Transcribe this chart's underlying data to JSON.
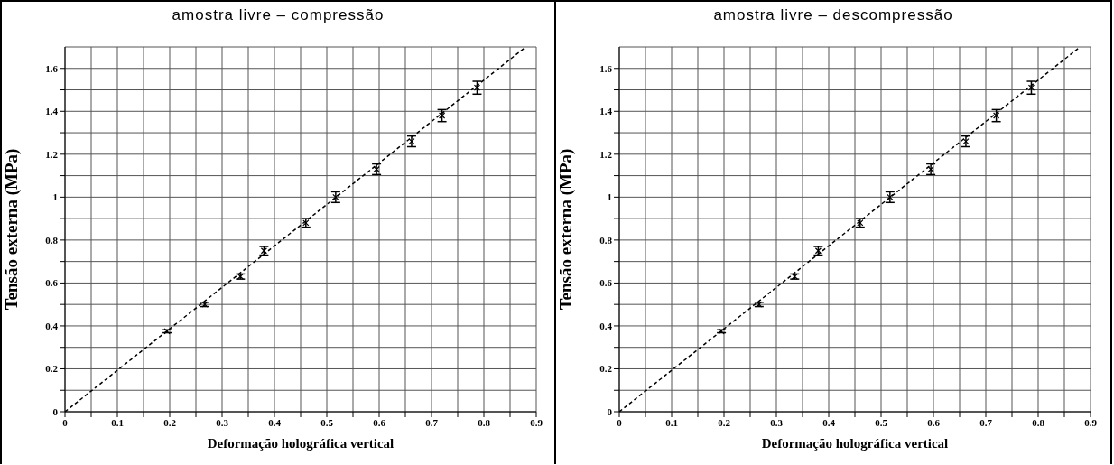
{
  "chart_data": [
    {
      "type": "scatter",
      "title": "amostra livre – compressão",
      "xlabel": "Deformação holográfica vertical",
      "ylabel": "Tensão externa (MPa)",
      "xlim": [
        0,
        0.9
      ],
      "ylim": [
        0,
        1.7
      ],
      "xticks": [
        0,
        {
          "value": 0.05,
          "label": null
        },
        0.1,
        {
          "value": 0.15,
          "label": null
        },
        0.2,
        {
          "value": 0.25,
          "label": null
        },
        0.3,
        {
          "value": 0.35,
          "label": null
        },
        0.4,
        {
          "value": 0.45,
          "label": null
        },
        0.5,
        {
          "value": 0.55,
          "label": null
        },
        0.6,
        {
          "value": 0.65,
          "label": null
        },
        0.7,
        {
          "value": 0.75,
          "label": null
        },
        0.8,
        {
          "value": 0.85,
          "label": null
        },
        0.9
      ],
      "yticks": [
        0,
        {
          "value": 0.1,
          "label": null
        },
        0.2,
        {
          "value": 0.3,
          "label": null
        },
        0.4,
        {
          "value": 0.5,
          "label": null
        },
        0.6,
        {
          "value": 0.7,
          "label": null
        },
        0.8,
        {
          "value": 0.9,
          "label": null
        },
        1,
        {
          "value": 1.1,
          "label": null
        },
        1.2,
        {
          "value": 1.3,
          "label": null
        },
        1.4,
        {
          "value": 1.5,
          "label": null
        },
        1.6
      ],
      "grid": true,
      "legend": false,
      "series": [
        {
          "color": "#000000",
          "marker": "cross",
          "x": [
            0.195,
            0.267,
            0.335,
            0.38,
            0.46,
            0.517,
            0.595,
            0.662,
            0.72,
            0.787
          ],
          "values": [
            0.375,
            0.5,
            0.63,
            0.75,
            0.88,
            1.0,
            1.13,
            1.26,
            1.38,
            1.51
          ],
          "errors": [
            0.007,
            0.01,
            0.012,
            0.02,
            0.02,
            0.025,
            0.025,
            0.025,
            0.028,
            0.03
          ]
        },
        {
          "type": "line",
          "color": "#000000",
          "line_style": "dashed",
          "x": [
            0,
            0.88
          ],
          "values": [
            0,
            1.7
          ]
        }
      ]
    },
    {
      "type": "scatter",
      "title": "amostra livre – descompressão",
      "xlabel": "Deformação holográfica vertical",
      "ylabel": "Tensão externa (MPa)",
      "xlim": [
        0,
        0.9
      ],
      "ylim": [
        0,
        1.7
      ],
      "xticks": [
        0,
        {
          "value": 0.05,
          "label": null
        },
        0.1,
        {
          "value": 0.15,
          "label": null
        },
        0.2,
        {
          "value": 0.25,
          "label": null
        },
        0.3,
        {
          "value": 0.35,
          "label": null
        },
        0.4,
        {
          "value": 0.45,
          "label": null
        },
        0.5,
        {
          "value": 0.55,
          "label": null
        },
        0.6,
        {
          "value": 0.65,
          "label": null
        },
        0.7,
        {
          "value": 0.75,
          "label": null
        },
        0.8,
        {
          "value": 0.85,
          "label": null
        },
        0.9
      ],
      "yticks": [
        0,
        {
          "value": 0.1,
          "label": null
        },
        0.2,
        {
          "value": 0.3,
          "label": null
        },
        0.4,
        {
          "value": 0.5,
          "label": null
        },
        0.6,
        {
          "value": 0.7,
          "label": null
        },
        0.8,
        {
          "value": 0.9,
          "label": null
        },
        1,
        {
          "value": 1.1,
          "label": null
        },
        1.2,
        {
          "value": 1.3,
          "label": null
        },
        1.4,
        {
          "value": 1.5,
          "label": null
        },
        1.6
      ],
      "grid": true,
      "legend": false,
      "series": [
        {
          "color": "#000000",
          "marker": "cross",
          "x": [
            0.195,
            0.267,
            0.335,
            0.38,
            0.46,
            0.517,
            0.595,
            0.662,
            0.72,
            0.787
          ],
          "values": [
            0.375,
            0.5,
            0.63,
            0.75,
            0.88,
            1.0,
            1.13,
            1.26,
            1.38,
            1.51
          ],
          "errors": [
            0.007,
            0.01,
            0.012,
            0.02,
            0.02,
            0.025,
            0.025,
            0.025,
            0.028,
            0.03
          ]
        },
        {
          "type": "line",
          "color": "#000000",
          "line_style": "dashed",
          "x": [
            0,
            0.88
          ],
          "values": [
            0,
            1.7
          ]
        }
      ]
    }
  ]
}
